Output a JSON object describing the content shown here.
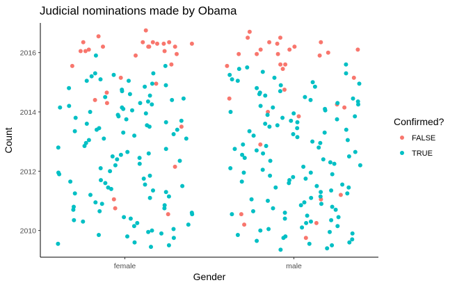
{
  "chart_data": {
    "type": "scatter",
    "subtype": "jitter",
    "title": "Judicial nominations made by Obama",
    "xlabel": "Gender",
    "ylabel": "Count",
    "categories": [
      "female",
      "male"
    ],
    "yticks": [
      2010,
      2012,
      2014,
      2016
    ],
    "ylim": [
      2009.1,
      2017.0
    ],
    "grid": false,
    "legend": {
      "title": "Confirmed?",
      "placement": "right",
      "entries": [
        {
          "label": "FALSE",
          "color": "#F8766D"
        },
        {
          "label": "TRUE",
          "color": "#00BFC4"
        }
      ]
    },
    "series": [
      {
        "name": "FALSE",
        "color": "#F8766D",
        "points": [
          [
            "female",
            2016.75
          ],
          [
            "female",
            2016.55
          ],
          [
            "female",
            2016.35
          ],
          [
            "female",
            2016.3
          ],
          [
            "female",
            2016.2
          ],
          [
            "female",
            2016.2
          ],
          [
            "female",
            2016.05
          ],
          [
            "female",
            2015.95
          ],
          [
            "female",
            2016.35
          ],
          [
            "female",
            2016.35
          ],
          [
            "female",
            2016.3
          ],
          [
            "female",
            2016.2
          ],
          [
            "female",
            2016.05
          ],
          [
            "female",
            2016.35
          ],
          [
            "female",
            2015.9
          ],
          [
            "female",
            2016.1
          ],
          [
            "female",
            2016.05
          ],
          [
            "female",
            2016.3
          ],
          [
            "female",
            2016.2
          ],
          [
            "female",
            2015.6
          ],
          [
            "female",
            2015.55
          ],
          [
            "female",
            2015.15
          ],
          [
            "female",
            2014.95
          ],
          [
            "female",
            2014.65
          ],
          [
            "female",
            2014.4
          ],
          [
            "female",
            2014.3
          ],
          [
            "female",
            2013.5
          ],
          [
            "female",
            2012.15
          ],
          [
            "female",
            2011.05
          ],
          [
            "female",
            2010.75
          ],
          [
            "female",
            2010.55
          ],
          [
            "male",
            2016.7
          ],
          [
            "male",
            2016.5
          ],
          [
            "male",
            2016.35
          ],
          [
            "male",
            2016.3
          ],
          [
            "male",
            2016.2
          ],
          [
            "male",
            2016.1
          ],
          [
            "male",
            2016.1
          ],
          [
            "male",
            2016.0
          ],
          [
            "male",
            2015.95
          ],
          [
            "male",
            2015.6
          ],
          [
            "male",
            2014.15
          ],
          [
            "male",
            2014.25
          ],
          [
            "male",
            2014.0
          ],
          [
            "male",
            2013.85
          ],
          [
            "male",
            2011.2
          ],
          [
            "male",
            2011.05
          ],
          [
            "male",
            2010.55
          ],
          [
            "male",
            2009.75
          ],
          [
            "male",
            2015.95
          ],
          [
            "male",
            2015.9
          ],
          [
            "male",
            2016.5
          ],
          [
            "male",
            2016.35
          ],
          [
            "male",
            2016.1
          ],
          [
            "male",
            2015.95
          ],
          [
            "male",
            2015.6
          ],
          [
            "male",
            2015.45
          ],
          [
            "male",
            2015.15
          ],
          [
            "male",
            2014.75
          ],
          [
            "male",
            2014.45
          ],
          [
            "male",
            2012.9
          ],
          [
            "male",
            2010.2
          ],
          [
            "male",
            2010.25
          ],
          [
            "male",
            2015.55
          ]
        ]
      },
      {
        "name": "TRUE",
        "color": "#00BFC4",
        "points": [
          [
            "female",
            2015.9
          ],
          [
            "female",
            2015.3
          ],
          [
            "female",
            2015.25
          ],
          [
            "female",
            2015.05
          ],
          [
            "female",
            2014.9
          ],
          [
            "female",
            2014.7
          ],
          [
            "female",
            2014.6
          ],
          [
            "female",
            2014.4
          ],
          [
            "female",
            2014.3
          ],
          [
            "female",
            2014.25
          ],
          [
            "female",
            2014.15
          ],
          [
            "female",
            2014.05
          ],
          [
            "female",
            2013.9
          ],
          [
            "female",
            2013.75
          ],
          [
            "female",
            2013.55
          ],
          [
            "female",
            2013.4
          ],
          [
            "female",
            2013.3
          ],
          [
            "female",
            2013.1
          ],
          [
            "female",
            2012.85
          ],
          [
            "female",
            2012.65
          ],
          [
            "female",
            2012.35
          ],
          [
            "female",
            2012.25
          ],
          [
            "female",
            2011.9
          ],
          [
            "female",
            2011.75
          ],
          [
            "female",
            2011.55
          ],
          [
            "female",
            2011.4
          ],
          [
            "female",
            2011.3
          ],
          [
            "female",
            2011.1
          ],
          [
            "female",
            2010.95
          ],
          [
            "female",
            2010.75
          ],
          [
            "female",
            2010.6
          ],
          [
            "female",
            2010.45
          ],
          [
            "female",
            2010.3
          ],
          [
            "female",
            2010.15
          ],
          [
            "female",
            2009.95
          ],
          [
            "female",
            2009.75
          ],
          [
            "female",
            2009.6
          ],
          [
            "female",
            2009.45
          ],
          [
            "female",
            2014.8
          ],
          [
            "female",
            2014.45
          ],
          [
            "female",
            2014.2
          ],
          [
            "female",
            2014.0
          ],
          [
            "female",
            2013.85
          ],
          [
            "female",
            2013.65
          ],
          [
            "female",
            2013.45
          ],
          [
            "female",
            2013.25
          ],
          [
            "female",
            2013.05
          ],
          [
            "female",
            2012.75
          ],
          [
            "female",
            2012.5
          ],
          [
            "female",
            2012.2
          ],
          [
            "female",
            2011.95
          ],
          [
            "female",
            2011.7
          ],
          [
            "female",
            2011.35
          ],
          [
            "female",
            2011.15
          ],
          [
            "female",
            2010.85
          ],
          [
            "female",
            2010.55
          ],
          [
            "female",
            2010.25
          ],
          [
            "female",
            2010.05
          ],
          [
            "female",
            2009.85
          ],
          [
            "female",
            2009.55
          ],
          [
            "female",
            2015.2
          ],
          [
            "female",
            2015.05
          ],
          [
            "female",
            2014.85
          ],
          [
            "female",
            2014.55
          ],
          [
            "female",
            2014.35
          ],
          [
            "female",
            2014.1
          ],
          [
            "female",
            2013.95
          ],
          [
            "female",
            2013.7
          ],
          [
            "female",
            2013.5
          ],
          [
            "female",
            2013.35
          ],
          [
            "female",
            2013.2
          ],
          [
            "female",
            2012.95
          ],
          [
            "female",
            2012.6
          ],
          [
            "female",
            2012.4
          ],
          [
            "female",
            2012.1
          ],
          [
            "female",
            2011.85
          ],
          [
            "female",
            2011.6
          ],
          [
            "female",
            2011.45
          ],
          [
            "female",
            2011.2
          ],
          [
            "female",
            2010.9
          ],
          [
            "female",
            2010.7
          ],
          [
            "female",
            2010.4
          ],
          [
            "female",
            2010.2
          ],
          [
            "female",
            2010.0
          ],
          [
            "female",
            2009.8
          ],
          [
            "female",
            2009.5
          ],
          [
            "female",
            2015.55
          ],
          [
            "female",
            2015.1
          ],
          [
            "female",
            2014.75
          ],
          [
            "female",
            2014.15
          ],
          [
            "female",
            2013.8
          ],
          [
            "female",
            2013.4
          ],
          [
            "female",
            2013.1
          ],
          [
            "female",
            2012.8
          ],
          [
            "female",
            2012.45
          ],
          [
            "female",
            2012.0
          ],
          [
            "female",
            2011.65
          ],
          [
            "female",
            2011.25
          ],
          [
            "female",
            2010.8
          ],
          [
            "female",
            2010.35
          ],
          [
            "female",
            2009.9
          ],
          [
            "female",
            2015.3
          ],
          [
            "female",
            2014.95
          ],
          [
            "female",
            2014.5
          ],
          [
            "female",
            2013.6
          ],
          [
            "female",
            2012.55
          ],
          [
            "female",
            2011.5
          ],
          [
            "female",
            2010.65
          ],
          [
            "male",
            2015.45
          ],
          [
            "male",
            2015.3
          ],
          [
            "male",
            2015.15
          ],
          [
            "male",
            2014.95
          ],
          [
            "male",
            2014.8
          ],
          [
            "male",
            2014.65
          ],
          [
            "male",
            2014.5
          ],
          [
            "male",
            2014.35
          ],
          [
            "male",
            2014.2
          ],
          [
            "male",
            2014.05
          ],
          [
            "male",
            2013.9
          ],
          [
            "male",
            2013.75
          ],
          [
            "male",
            2013.6
          ],
          [
            "male",
            2013.45
          ],
          [
            "male",
            2013.3
          ],
          [
            "male",
            2013.15
          ],
          [
            "male",
            2012.95
          ],
          [
            "male",
            2012.8
          ],
          [
            "male",
            2012.6
          ],
          [
            "male",
            2012.45
          ],
          [
            "male",
            2012.3
          ],
          [
            "male",
            2012.1
          ],
          [
            "male",
            2011.95
          ],
          [
            "male",
            2011.8
          ],
          [
            "male",
            2011.6
          ],
          [
            "male",
            2011.45
          ],
          [
            "male",
            2011.3
          ],
          [
            "male",
            2011.1
          ],
          [
            "male",
            2010.95
          ],
          [
            "male",
            2010.75
          ],
          [
            "male",
            2010.6
          ],
          [
            "male",
            2010.4
          ],
          [
            "male",
            2010.25
          ],
          [
            "male",
            2010.05
          ],
          [
            "male",
            2009.9
          ],
          [
            "male",
            2009.7
          ],
          [
            "male",
            2009.55
          ],
          [
            "male",
            2009.35
          ],
          [
            "male",
            2015.6
          ],
          [
            "male",
            2015.35
          ],
          [
            "male",
            2015.1
          ],
          [
            "male",
            2014.9
          ],
          [
            "male",
            2014.7
          ],
          [
            "male",
            2014.45
          ],
          [
            "male",
            2014.25
          ],
          [
            "male",
            2014.0
          ],
          [
            "male",
            2013.8
          ],
          [
            "male",
            2013.55
          ],
          [
            "male",
            2013.35
          ],
          [
            "male",
            2013.05
          ],
          [
            "male",
            2012.85
          ],
          [
            "male",
            2012.65
          ],
          [
            "male",
            2012.4
          ],
          [
            "male",
            2012.2
          ],
          [
            "male",
            2011.9
          ],
          [
            "male",
            2011.7
          ],
          [
            "male",
            2011.5
          ],
          [
            "male",
            2011.25
          ],
          [
            "male",
            2011.0
          ],
          [
            "male",
            2010.8
          ],
          [
            "male",
            2010.5
          ],
          [
            "male",
            2010.3
          ],
          [
            "male",
            2010.1
          ],
          [
            "male",
            2009.85
          ],
          [
            "male",
            2009.6
          ],
          [
            "male",
            2009.4
          ],
          [
            "male",
            2015.25
          ],
          [
            "male",
            2014.85
          ],
          [
            "male",
            2014.55
          ],
          [
            "male",
            2014.3
          ],
          [
            "male",
            2014.1
          ],
          [
            "male",
            2013.85
          ],
          [
            "male",
            2013.65
          ],
          [
            "male",
            2013.4
          ],
          [
            "male",
            2013.2
          ],
          [
            "male",
            2012.9
          ],
          [
            "male",
            2012.7
          ],
          [
            "male",
            2012.5
          ],
          [
            "male",
            2012.25
          ],
          [
            "male",
            2012.05
          ],
          [
            "male",
            2011.85
          ],
          [
            "male",
            2011.55
          ],
          [
            "male",
            2011.35
          ],
          [
            "male",
            2011.15
          ],
          [
            "male",
            2010.9
          ],
          [
            "male",
            2010.65
          ],
          [
            "male",
            2010.45
          ],
          [
            "male",
            2010.15
          ],
          [
            "male",
            2009.95
          ],
          [
            "male",
            2009.65
          ],
          [
            "male",
            2015.5
          ],
          [
            "male",
            2015.05
          ],
          [
            "male",
            2014.6
          ],
          [
            "male",
            2014.15
          ],
          [
            "male",
            2013.7
          ],
          [
            "male",
            2013.25
          ],
          [
            "male",
            2012.75
          ],
          [
            "male",
            2012.35
          ],
          [
            "male",
            2011.95
          ],
          [
            "male",
            2011.45
          ],
          [
            "male",
            2011.05
          ],
          [
            "male",
            2010.55
          ],
          [
            "male",
            2010.0
          ],
          [
            "male",
            2009.5
          ],
          [
            "male",
            2013.95
          ],
          [
            "male",
            2013.0
          ],
          [
            "male",
            2012.15
          ],
          [
            "male",
            2011.65
          ],
          [
            "male",
            2010.7
          ],
          [
            "male",
            2009.8
          ],
          [
            "male",
            2015.0
          ],
          [
            "male",
            2014.4
          ],
          [
            "male",
            2013.5
          ],
          [
            "male",
            2012.55
          ],
          [
            "male",
            2011.75
          ],
          [
            "male",
            2010.85
          ],
          [
            "male",
            2010.35
          ],
          [
            "male",
            2009.75
          ]
        ]
      }
    ]
  }
}
